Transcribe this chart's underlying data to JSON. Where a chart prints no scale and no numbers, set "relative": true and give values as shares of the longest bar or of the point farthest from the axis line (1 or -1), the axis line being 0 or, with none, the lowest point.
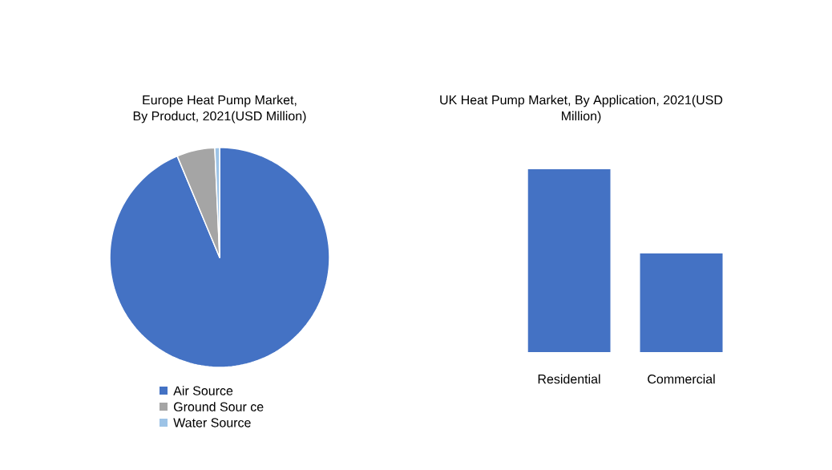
{
  "chart_data": [
    {
      "type": "pie",
      "title": "Europe Heat Pump Market, By Product, 2021(USD Million)",
      "categories": [
        "Air Source",
        "Ground Sour ce",
        "Water Source"
      ],
      "values": [
        93.7,
        5.6,
        0.7
      ],
      "colors": [
        "#4472c4",
        "#a5a5a5",
        "#9dc3e6"
      ],
      "legend": "bottom"
    },
    {
      "type": "bar",
      "title": "UK Heat Pump Market, By Application, 2021(USD Million)",
      "categories": [
        "Residential",
        "Commercial"
      ],
      "values": [
        1,
        0.54
      ],
      "color": "#4472c4",
      "relative": true
    }
  ]
}
